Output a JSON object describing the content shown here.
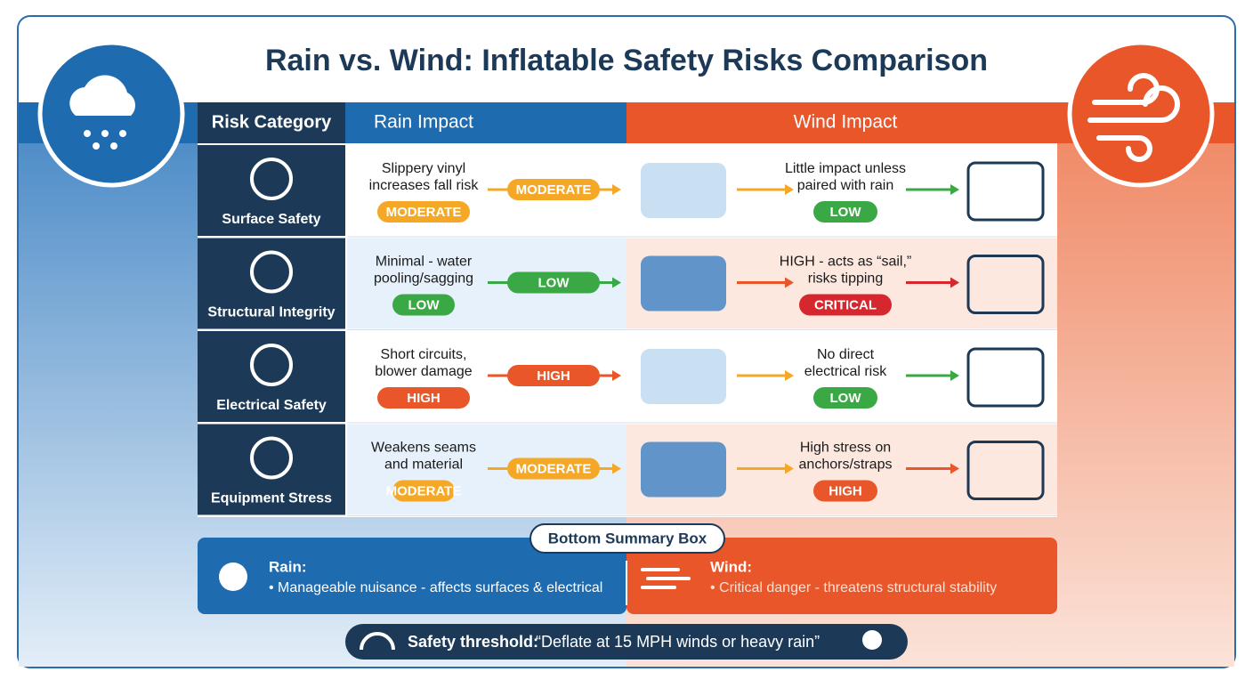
{
  "title": "Rain vs. Wind: Inflatable Safety Risks Comparison",
  "table": {
    "headers": [
      "Risk Category",
      "Rain Impact",
      "Wind Impact"
    ],
    "rows": [
      {
        "category": "Surface Safety",
        "rain_text": [
          "Slippery vinyl",
          "increases fall risk"
        ],
        "rain_level": {
          "label": "MODERATE",
          "color": "#f4a825"
        },
        "rain_arrow": {
          "label": "MODERATE",
          "color": "#f4a825"
        },
        "wind_text": [
          "Little impact unless",
          "paired with rain"
        ],
        "wind_level": {
          "label": "LOW",
          "color": "#3aa845"
        }
      },
      {
        "category": "Structural Integrity",
        "rain_text": [
          "Minimal - water",
          "pooling/sagging"
        ],
        "rain_level": {
          "label": "LOW",
          "color": "#3aa845"
        },
        "rain_arrow": {
          "label": "LOW",
          "color": "#3aa845"
        },
        "wind_text": [
          "HIGH - acts as “sail,”",
          "risks tipping"
        ],
        "wind_level": {
          "label": "CRITICAL",
          "color": "#d6262e"
        }
      },
      {
        "category": "Electrical Safety",
        "rain_text": [
          "Short circuits,",
          "blower damage"
        ],
        "rain_level": {
          "label": "HIGH",
          "color": "#e8562a"
        },
        "rain_arrow": {
          "label": "HIGH",
          "color": "#e8562a"
        },
        "wind_text": [
          "No direct",
          "electrical risk"
        ],
        "wind_level": {
          "label": "LOW",
          "color": "#3aa845"
        }
      },
      {
        "category": "Equipment Stress",
        "rain_text": [
          "Weakens seams",
          "and material"
        ],
        "rain_level": {
          "label": "MODERATE",
          "color": "#f4a825"
        },
        "rain_arrow": {
          "label": "MODERATE",
          "color": "#f4a825"
        },
        "wind_text": [
          "High stress on",
          "anchors/straps"
        ],
        "wind_level": {
          "label": "HIGH",
          "color": "#e8562a"
        }
      }
    ]
  },
  "summary": {
    "label": "Bottom Summary Box",
    "rain": {
      "title": "Rain:",
      "text": "• Manageable nuisance - affects surfaces & electrical"
    },
    "wind": {
      "title": "Wind:",
      "text": "• Critical danger - threatens structural stability"
    }
  },
  "threshold": {
    "label": "Safety threshold:",
    "text": "“Deflate at 15 MPH winds or heavy rain”"
  }
}
